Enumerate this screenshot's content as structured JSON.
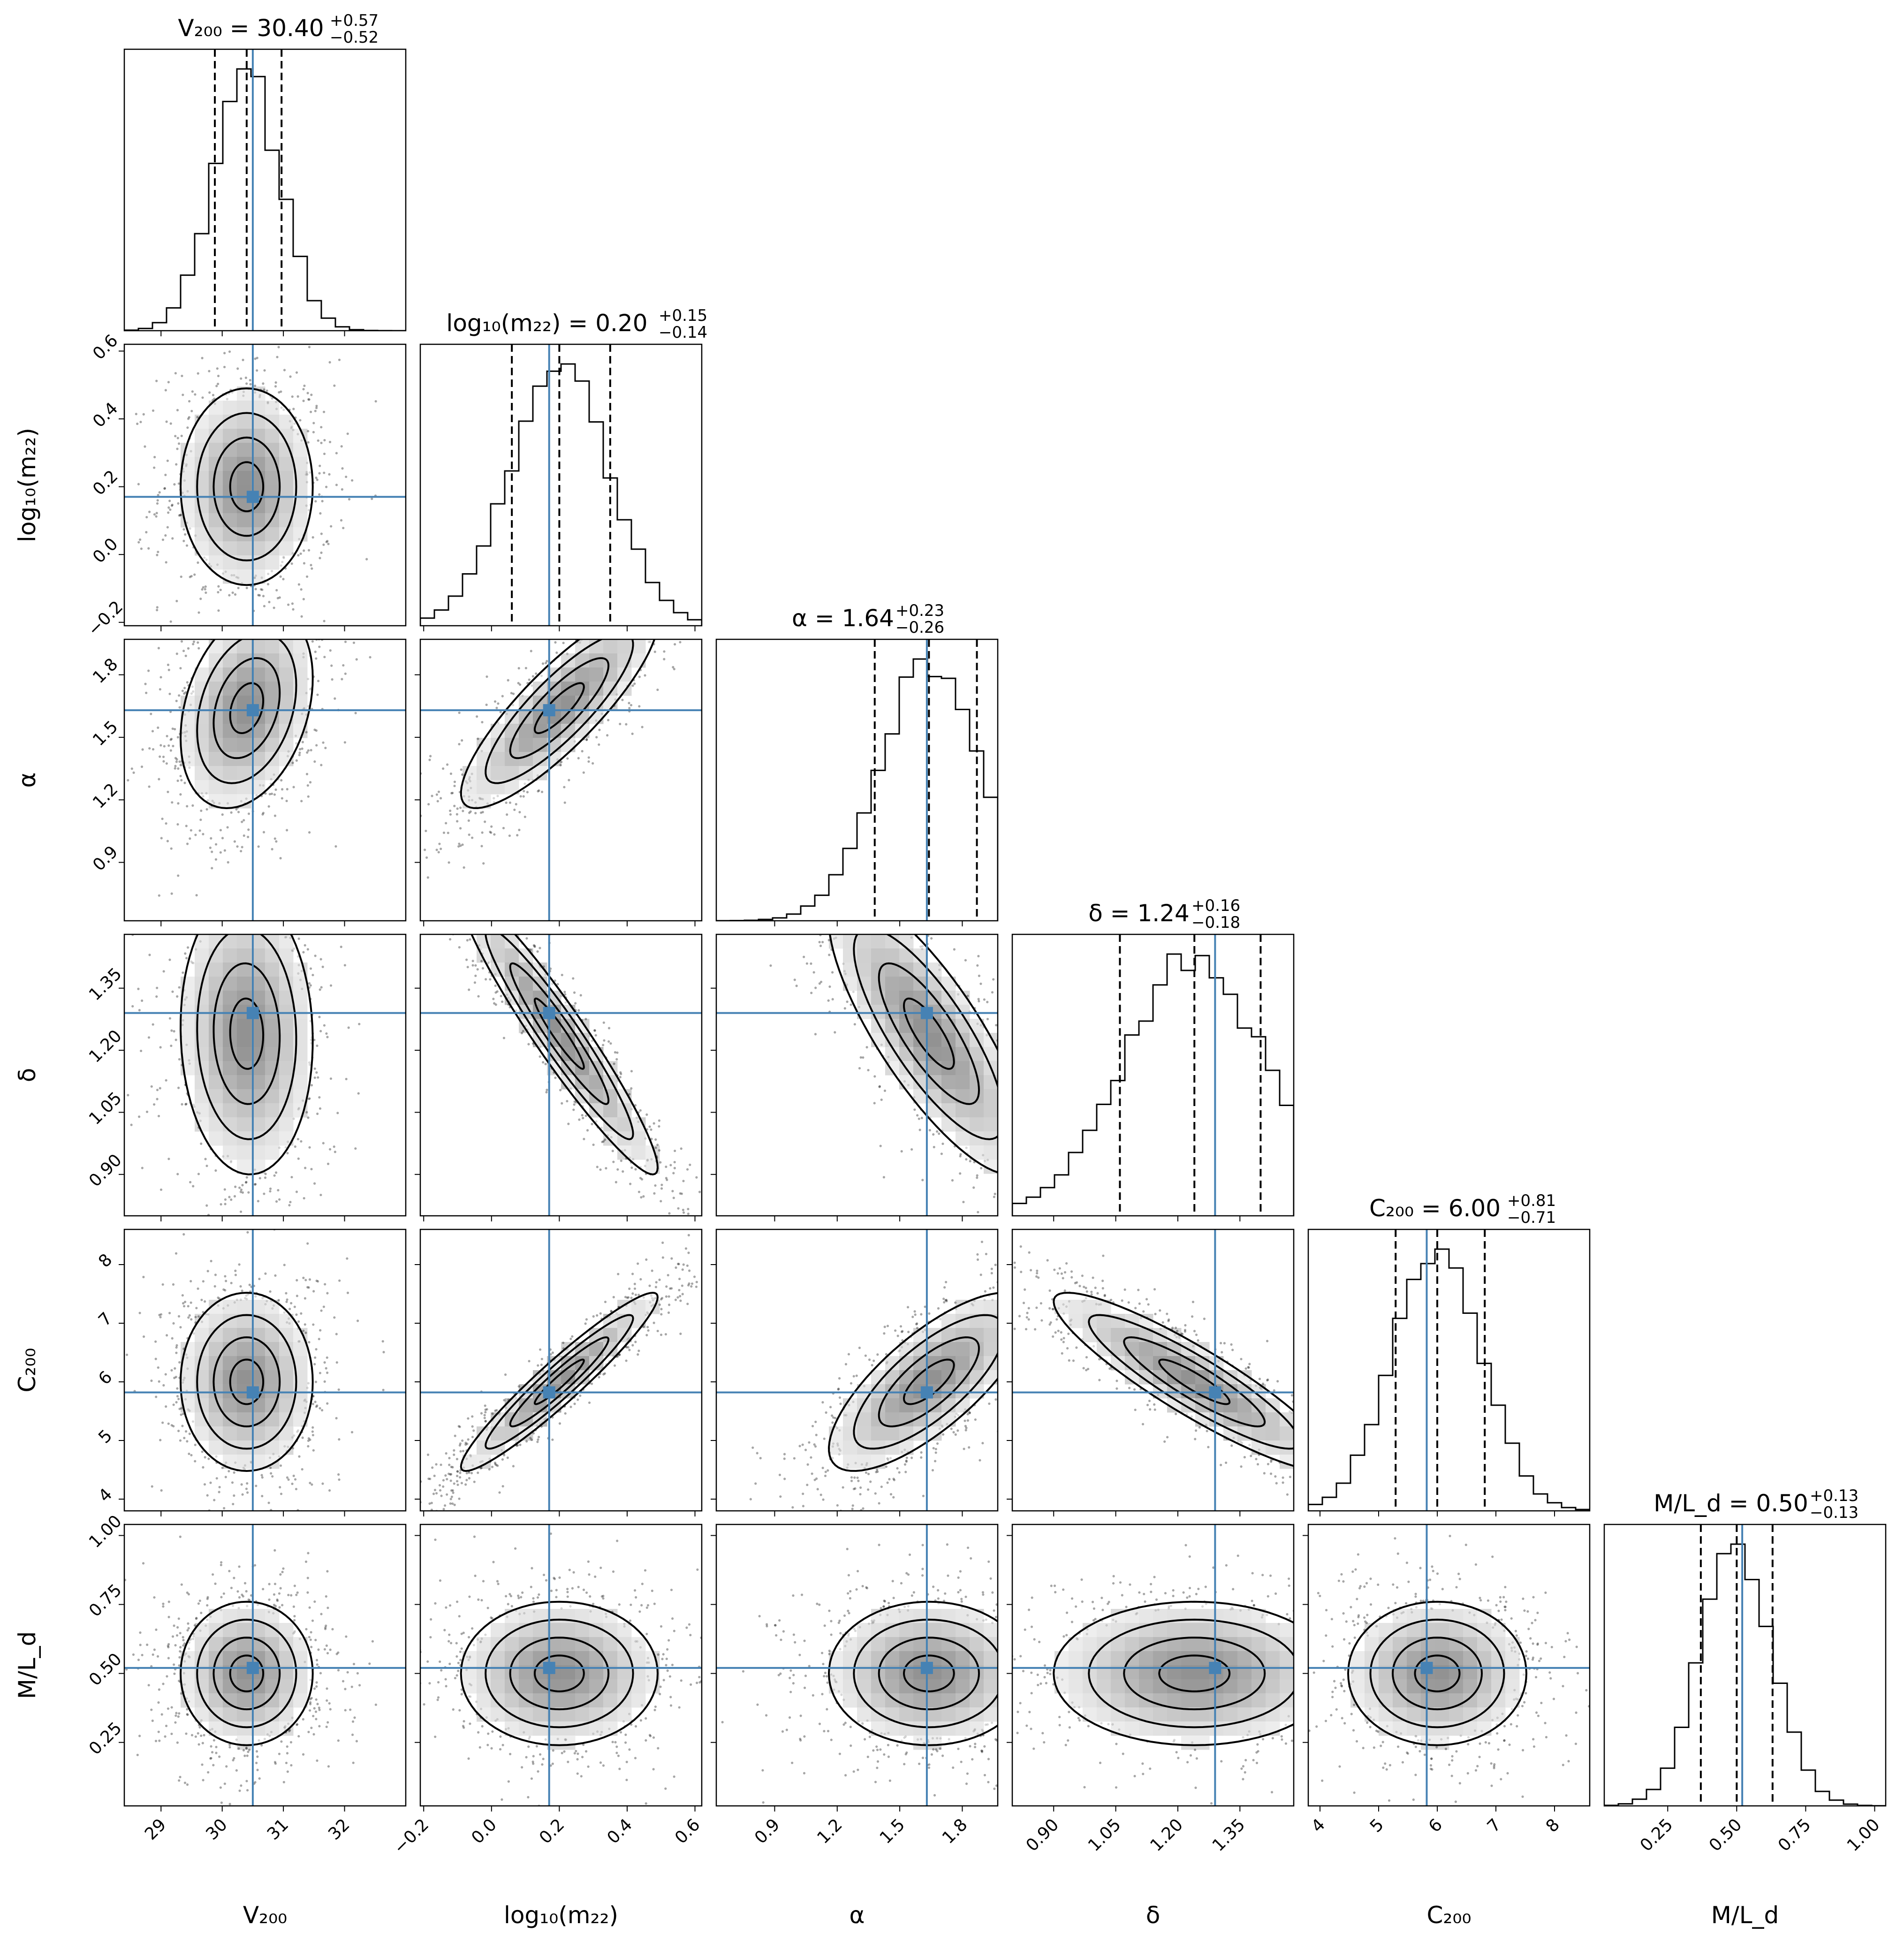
{
  "chart_data": {
    "type": "corner",
    "truth_color": "#4682b4",
    "parameters": [
      {
        "key": "V200",
        "axis_label": "V₂₀₀",
        "title": "V₂₀₀ = 30.40",
        "title_sup": "+0.57",
        "title_sub": "−0.52",
        "range": [
          28.4,
          33.0
        ],
        "ticks": [
          29,
          30,
          31,
          32
        ],
        "tick_labels": [
          "29",
          "30",
          "31",
          "32"
        ],
        "quantiles": [
          29.88,
          30.4,
          30.97
        ],
        "truth": 30.5,
        "mean": 30.4,
        "sd": 0.54
      },
      {
        "key": "log10m22",
        "axis_label": "log₁₀(m₂₂)",
        "title": "log₁₀(m₂₂) = 0.20",
        "title_sup": "+0.15",
        "title_sub": "−0.14",
        "range": [
          -0.21,
          0.62
        ],
        "ticks": [
          -0.2,
          0.0,
          0.2,
          0.4,
          0.6
        ],
        "tick_labels": [
          "−0.2",
          "0.0",
          "0.2",
          "0.4",
          "0.6"
        ],
        "quantiles": [
          0.06,
          0.2,
          0.35
        ],
        "truth": 0.17,
        "mean": 0.2,
        "sd": 0.145
      },
      {
        "key": "alpha",
        "axis_label": "α",
        "title": "α = 1.64",
        "title_sup": "+0.23",
        "title_sub": "−0.26",
        "range": [
          0.62,
          1.97
        ],
        "ticks": [
          0.9,
          1.2,
          1.5,
          1.8
        ],
        "tick_labels": [
          "0.9",
          "1.2",
          "1.5",
          "1.8"
        ],
        "quantiles": [
          1.38,
          1.64,
          1.87
        ],
        "truth": 1.63,
        "mean": 1.64,
        "sd": 0.24
      },
      {
        "key": "delta",
        "axis_label": "δ",
        "title": "δ = 1.24",
        "title_sup": "+0.16",
        "title_sub": "−0.18",
        "range": [
          0.8,
          1.48
        ],
        "ticks": [
          0.9,
          1.05,
          1.2,
          1.35
        ],
        "tick_labels": [
          "0.90",
          "1.05",
          "1.20",
          "1.35"
        ],
        "quantiles": [
          1.06,
          1.24,
          1.4
        ],
        "truth": 1.29,
        "mean": 1.24,
        "sd": 0.17
      },
      {
        "key": "C200",
        "axis_label": "C₂₀₀",
        "title": "C₂₀₀ = 6.00",
        "title_sup": "+0.81",
        "title_sub": "−0.71",
        "range": [
          3.8,
          8.6
        ],
        "ticks": [
          4,
          5,
          6,
          7,
          8
        ],
        "tick_labels": [
          "4",
          "5",
          "6",
          "7",
          "8"
        ],
        "quantiles": [
          5.29,
          6.0,
          6.81
        ],
        "truth": 5.82,
        "mean": 6.0,
        "sd": 0.76
      },
      {
        "key": "MLd",
        "axis_label": "M/L_d",
        "title": "M/L_d = 0.50",
        "title_sup": "+0.13",
        "title_sub": "−0.13",
        "range": [
          0.02,
          1.04
        ],
        "ticks": [
          0.25,
          0.5,
          0.75,
          1.0
        ],
        "tick_labels": [
          "0.25",
          "0.50",
          "0.75",
          "1.00"
        ],
        "quantiles": [
          0.37,
          0.5,
          0.63
        ],
        "truth": 0.52,
        "mean": 0.5,
        "sd": 0.13
      }
    ],
    "correlations": [
      [
        1,
        0,
        0.3,
        -0.05,
        0,
        0
      ],
      [
        0,
        1,
        0.85,
        -0.95,
        0.95,
        0
      ],
      [
        0.3,
        0.85,
        1,
        -0.8,
        0.75,
        0
      ],
      [
        -0.05,
        -0.95,
        -0.8,
        1,
        -0.9,
        0
      ],
      [
        0,
        0.95,
        0.75,
        -0.9,
        1,
        0
      ],
      [
        0,
        0,
        0,
        0,
        0,
        1
      ]
    ],
    "contour_levels_sigma": [
      0.5,
      1.0,
      1.5,
      2.0
    ],
    "grid": false
  }
}
